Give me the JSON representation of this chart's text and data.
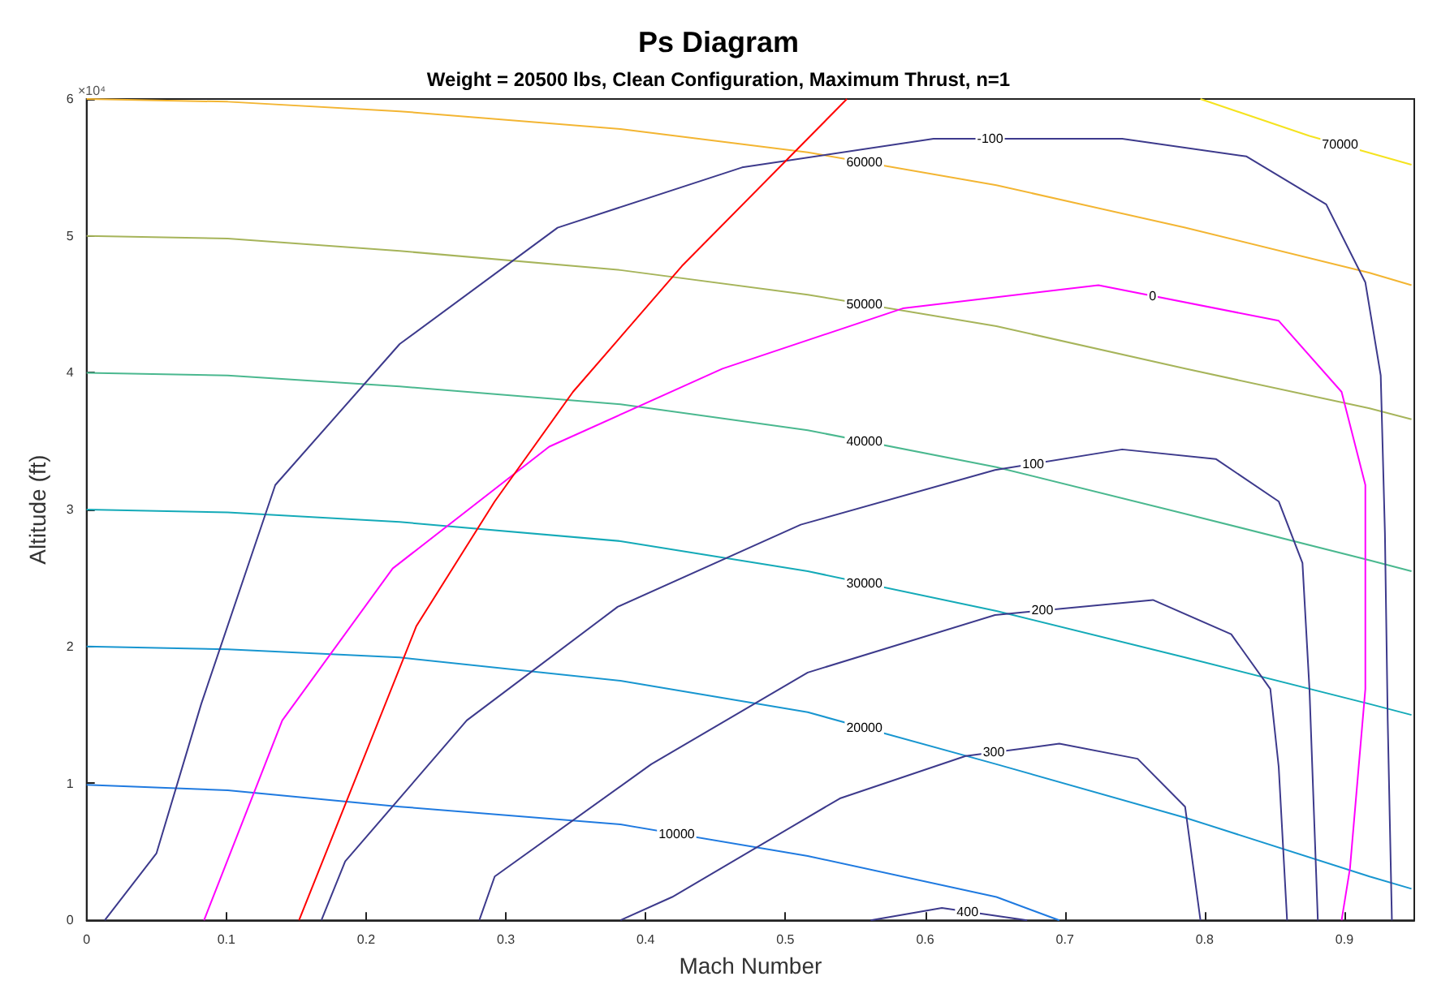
{
  "chart_data": {
    "type": "line",
    "title": "Ps Diagram",
    "subtitle": "Weight = 20500 lbs, Clean Configuration, Maximum Thrust, n=1",
    "xlabel": "Mach Number",
    "ylabel": "Altitude (ft)",
    "xlim": [
      0,
      0.95
    ],
    "xticks": [
      0,
      0.1,
      0.2,
      0.3,
      0.4,
      0.5,
      0.6,
      0.7,
      0.8,
      0.9
    ],
    "ylim": [
      0,
      6
    ],
    "yticks": [
      0,
      1,
      2,
      3,
      4,
      5,
      6
    ],
    "grid": false,
    "legend": false,
    "marker": "none",
    "series": [
      {
        "name": "10000",
        "color": "#1f7ae0",
        "x": [
          0,
          0.101,
          0.224,
          0.382,
          0.516,
          0.651,
          0.696
        ],
        "values": [
          0.99,
          0.95,
          0.83,
          0.7,
          0.47,
          0.17,
          0
        ]
      },
      {
        "name": "20000",
        "color": "#1896d0",
        "x": [
          0,
          0.101,
          0.224,
          0.382,
          0.516,
          0.651,
          0.786,
          0.918,
          0.948
        ],
        "values": [
          2,
          1.98,
          1.92,
          1.75,
          1.52,
          1.14,
          0.75,
          0.32,
          0.23
        ]
      },
      {
        "name": "30000",
        "color": "#14aab8",
        "x": [
          0,
          0.101,
          0.224,
          0.382,
          0.516,
          0.651,
          0.786,
          0.918,
          0.948
        ],
        "values": [
          3,
          2.98,
          2.91,
          2.77,
          2.55,
          2.26,
          1.92,
          1.58,
          1.5
        ]
      },
      {
        "name": "40000",
        "color": "#4ab88f",
        "x": [
          0,
          0.101,
          0.224,
          0.382,
          0.516,
          0.651,
          0.786,
          0.918,
          0.948
        ],
        "values": [
          4,
          3.98,
          3.9,
          3.77,
          3.58,
          3.31,
          2.97,
          2.63,
          2.55
        ]
      },
      {
        "name": "50000",
        "color": "#a6b45a",
        "x": [
          0,
          0.101,
          0.224,
          0.382,
          0.516,
          0.651,
          0.786,
          0.918,
          0.948
        ],
        "values": [
          5,
          4.98,
          4.89,
          4.75,
          4.57,
          4.34,
          4.03,
          3.74,
          3.66
        ]
      },
      {
        "name": "60000",
        "color": "#f3b532",
        "x": [
          0,
          0.101,
          0.224,
          0.382,
          0.516,
          0.651,
          0.786,
          0.918,
          0.948
        ],
        "values": [
          6,
          5.98,
          5.91,
          5.78,
          5.61,
          5.37,
          5.06,
          4.73,
          4.64
        ]
      },
      {
        "name": "70000",
        "color": "#f5e31f",
        "x": [
          0.797,
          0.875,
          0.948
        ],
        "values": [
          6,
          5.73,
          5.52
        ]
      },
      {
        "name": "-100",
        "color": "#3d3a8c",
        "x": [
          0.013,
          0.05,
          0.082,
          0.135,
          0.224,
          0.337,
          0.469,
          0.606,
          0.741,
          0.83,
          0.887,
          0.915,
          0.926,
          0.929,
          0.931,
          0.934
        ],
        "values": [
          0,
          0.49,
          1.58,
          3.18,
          4.21,
          5.06,
          5.5,
          5.71,
          5.71,
          5.58,
          5.23,
          4.66,
          3.98,
          2.83,
          1.46,
          0
        ]
      },
      {
        "name": "0",
        "color": "#ff00ff",
        "x": [
          0.084,
          0.14,
          0.219,
          0.331,
          0.455,
          0.584,
          0.724,
          0.853,
          0.898,
          0.915,
          0.915,
          0.904,
          0.898
        ],
        "values": [
          0,
          1.46,
          2.57,
          3.46,
          4.03,
          4.47,
          4.64,
          4.38,
          3.86,
          3.18,
          1.69,
          0.38,
          0
        ]
      },
      {
        "name": "100",
        "color": "#3d3a8c",
        "x": [
          0.168,
          0.185,
          0.272,
          0.38,
          0.511,
          0.65,
          0.741,
          0.808,
          0.853,
          0.87,
          0.875,
          0.881
        ],
        "values": [
          0,
          0.43,
          1.46,
          2.29,
          2.89,
          3.29,
          3.44,
          3.37,
          3.06,
          2.61,
          1.69,
          0
        ]
      },
      {
        "name": "200",
        "color": "#3d3a8c",
        "x": [
          0.281,
          0.292,
          0.404,
          0.516,
          0.65,
          0.763,
          0.819,
          0.847,
          0.853,
          0.859
        ],
        "values": [
          0,
          0.32,
          1.14,
          1.81,
          2.23,
          2.34,
          2.09,
          1.69,
          1.12,
          0
        ]
      },
      {
        "name": "300",
        "color": "#3d3a8c",
        "x": [
          0.382,
          0.419,
          0.539,
          0.629,
          0.696,
          0.752,
          0.786,
          0.797
        ],
        "values": [
          0,
          0.17,
          0.89,
          1.2,
          1.29,
          1.18,
          0.83,
          0
        ]
      },
      {
        "name": "400",
        "color": "#3d3a8c",
        "x": [
          0.561,
          0.612,
          0.673
        ],
        "values": [
          0,
          0.09,
          0
        ]
      },
      {
        "color": "#ff0000",
        "x": [
          0.152,
          0.236,
          0.292,
          0.348,
          0.426,
          0.544
        ],
        "values": [
          0,
          2.15,
          3.06,
          3.86,
          4.78,
          6
        ]
      }
    ],
    "annotations": [
      "×10⁴"
    ]
  }
}
